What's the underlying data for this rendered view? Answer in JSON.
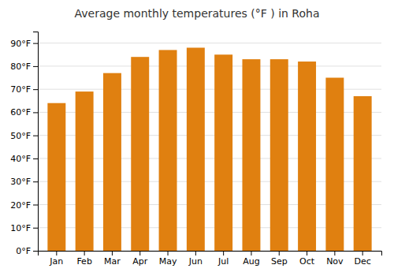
{
  "chart_data": {
    "type": "bar",
    "title": "Average monthly temperatures (°F ) in Roha",
    "categories": [
      "Jan",
      "Feb",
      "Mar",
      "Apr",
      "May",
      "Jun",
      "Jul",
      "Aug",
      "Sep",
      "Oct",
      "Nov",
      "Dec"
    ],
    "values": [
      64,
      69,
      77,
      84,
      87,
      88,
      85,
      83,
      83,
      82,
      75,
      67
    ],
    "color": "#E08010",
    "ylim": [
      0,
      95
    ],
    "yticks": [
      {
        "value": 0,
        "label": "0°F"
      },
      {
        "value": 10,
        "label": "10°F"
      },
      {
        "value": 20,
        "label": "20°F"
      },
      {
        "value": 30,
        "label": "30°F"
      },
      {
        "value": 40,
        "label": "40°F"
      },
      {
        "value": 50,
        "label": "50°F"
      },
      {
        "value": 60,
        "label": "60°F"
      },
      {
        "value": 70,
        "label": "70°F"
      },
      {
        "value": 80,
        "label": "80°F"
      },
      {
        "value": 90,
        "label": "90°F"
      }
    ],
    "grid": true
  }
}
